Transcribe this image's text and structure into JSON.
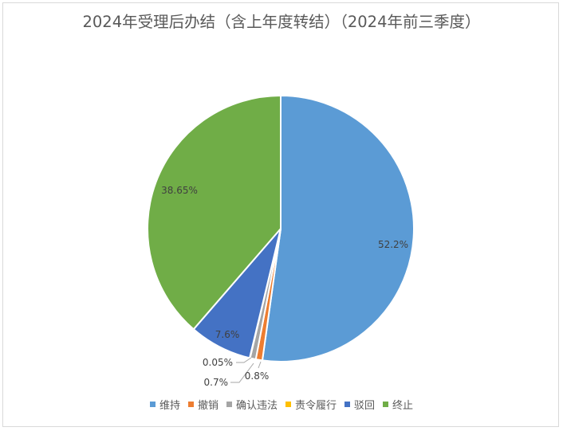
{
  "chart_data": {
    "type": "pie",
    "title": "2024年受理后办结（含上年度转结）（2024年前三季度）",
    "categories": [
      "维持",
      "撤销",
      "确认违法",
      "责令履行",
      "驳回",
      "终止"
    ],
    "values": [
      52.2,
      0.8,
      0.7,
      0.05,
      7.6,
      38.65
    ],
    "labels": [
      "52.2%",
      "0.8%",
      "0.7%",
      "0.05%",
      "7.6%",
      "38.65%"
    ],
    "colors": [
      "#5b9bd5",
      "#ed7d31",
      "#a5a5a5",
      "#ffc000",
      "#4472c4",
      "#70ad47"
    ],
    "legend": "bottom"
  }
}
